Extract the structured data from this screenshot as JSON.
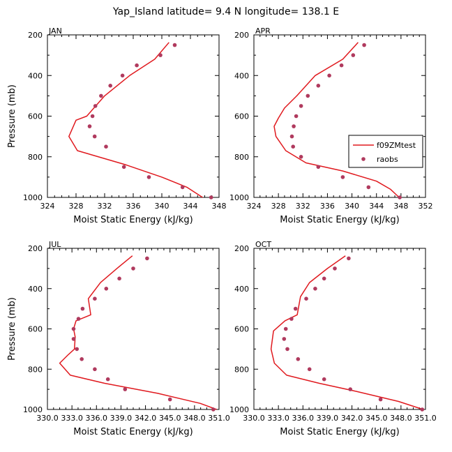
{
  "title": "Yap_Island  latitude= 9.4 N longitude= 138.1 E",
  "colors": {
    "model": "#e0191e",
    "obs": "#b03a5e",
    "axis": "#000000"
  },
  "chart_data": [
    {
      "type": "line",
      "panel": "JAN",
      "xlabel": "Moist Static Energy (kJ/kg)",
      "ylabel": "Pressure (mb)",
      "xlim": [
        324,
        348
      ],
      "ylim": [
        1000,
        200
      ],
      "xticks": [
        "324",
        "328",
        "332",
        "336",
        "340",
        "344",
        "348"
      ],
      "yticks": [
        "200",
        "400",
        "600",
        "800",
        "1000"
      ],
      "series": [
        {
          "name": "f09ZMtest",
          "kind": "line",
          "x": [
            341.0,
            339.0,
            335.5,
            332.0,
            329.5,
            328.0,
            327.0,
            328.2,
            335.0,
            340.0,
            343.5,
            345.7
          ],
          "y": [
            237,
            320,
            400,
            500,
            600,
            620,
            700,
            770,
            840,
            900,
            950,
            1000
          ]
        },
        {
          "name": "raobs",
          "kind": "scatter",
          "x": [
            341.8,
            339.8,
            336.5,
            334.5,
            332.8,
            331.5,
            330.7,
            330.3,
            329.9,
            330.6,
            332.2,
            334.7,
            338.2,
            342.9,
            346.9
          ],
          "y": [
            250,
            300,
            350,
            400,
            450,
            500,
            550,
            600,
            650,
            700,
            750,
            850,
            900,
            950,
            1000
          ]
        }
      ]
    },
    {
      "type": "line",
      "panel": "APR",
      "xlabel": "Moist Static Energy (kJ/kg)",
      "ylabel": "",
      "xlim": [
        324,
        352
      ],
      "ylim": [
        1000,
        200
      ],
      "xticks": [
        "324",
        "328",
        "332",
        "336",
        "340",
        "344",
        "348",
        "352"
      ],
      "yticks": [
        "200",
        "400",
        "600",
        "800",
        "1000"
      ],
      "legend": {
        "position": "right",
        "entries": [
          "f09ZMtest",
          "raobs"
        ]
      },
      "series": [
        {
          "name": "f09ZMtest",
          "kind": "line",
          "x": [
            341.0,
            338.5,
            334.0,
            331.0,
            329.0,
            328.0,
            327.3,
            327.6,
            329.2,
            332.5,
            338.5,
            344.0,
            346.3,
            347.7
          ],
          "y": [
            237,
            320,
            400,
            500,
            560,
            610,
            650,
            700,
            770,
            830,
            870,
            920,
            960,
            1000
          ]
        },
        {
          "name": "raobs",
          "kind": "scatter",
          "x": [
            342.0,
            340.2,
            338.3,
            336.3,
            334.5,
            332.8,
            331.7,
            330.9,
            330.5,
            330.2,
            330.4,
            331.7,
            334.5,
            338.5,
            342.7,
            347.8
          ],
          "y": [
            250,
            300,
            350,
            400,
            450,
            500,
            550,
            600,
            650,
            700,
            750,
            800,
            850,
            900,
            950,
            1000
          ]
        }
      ]
    },
    {
      "type": "line",
      "panel": "JUL",
      "xlabel": "Moist Static Energy (kJ/kg)",
      "ylabel": "Pressure (mb)",
      "xlim": [
        330.0,
        351.0
      ],
      "ylim": [
        1000,
        200
      ],
      "xticks": [
        "330.0",
        "333.0",
        "336.0",
        "339.0",
        "342.0",
        "345.0",
        "348.0",
        "351.0"
      ],
      "yticks": [
        "200",
        "400",
        "600",
        "800",
        "1000"
      ],
      "series": [
        {
          "name": "f09ZMtest",
          "kind": "line",
          "x": [
            340.4,
            338.5,
            336.5,
            335.0,
            335.3,
            333.5,
            333.2,
            333.4,
            333.3,
            332.5,
            331.5,
            332.8,
            337.0,
            343.5,
            348.7,
            350.7
          ],
          "y": [
            237,
            300,
            370,
            450,
            530,
            560,
            600,
            640,
            700,
            730,
            770,
            830,
            870,
            920,
            970,
            1000
          ]
        },
        {
          "name": "raobs",
          "kind": "scatter",
          "x": [
            342.2,
            340.5,
            338.8,
            337.2,
            335.8,
            334.3,
            333.8,
            333.2,
            333.2,
            333.6,
            334.2,
            335.8,
            337.4,
            339.5,
            345.0,
            350.3
          ],
          "y": [
            250,
            300,
            350,
            400,
            450,
            500,
            550,
            600,
            650,
            700,
            750,
            800,
            850,
            900,
            950,
            1000
          ]
        }
      ]
    },
    {
      "type": "line",
      "panel": "OCT",
      "xlabel": "Moist Static Energy (kJ/kg)",
      "ylabel": "",
      "xlim": [
        330.0,
        351.0
      ],
      "ylim": [
        1000,
        200
      ],
      "xticks": [
        "330.0",
        "333.0",
        "336.0",
        "339.0",
        "342.0",
        "345.0",
        "348.0",
        "351.0"
      ],
      "yticks": [
        "200",
        "400",
        "600",
        "800",
        "1000"
      ],
      "series": [
        {
          "name": "f09ZMtest",
          "kind": "line",
          "x": [
            341.2,
            339.0,
            336.8,
            335.7,
            335.3,
            333.8,
            332.4,
            332.1,
            332.5,
            334.0,
            338.0,
            342.5,
            347.7,
            350.7
          ],
          "y": [
            237,
            300,
            370,
            440,
            530,
            560,
            610,
            700,
            770,
            830,
            870,
            910,
            960,
            1000
          ]
        },
        {
          "name": "raobs",
          "kind": "scatter",
          "x": [
            341.6,
            339.9,
            338.6,
            337.5,
            336.4,
            335.1,
            334.6,
            333.9,
            333.7,
            334.1,
            335.4,
            336.8,
            338.6,
            341.8,
            345.5,
            350.6
          ],
          "y": [
            250,
            300,
            350,
            400,
            450,
            500,
            550,
            600,
            650,
            700,
            750,
            800,
            850,
            900,
            950,
            1000
          ]
        }
      ]
    }
  ]
}
